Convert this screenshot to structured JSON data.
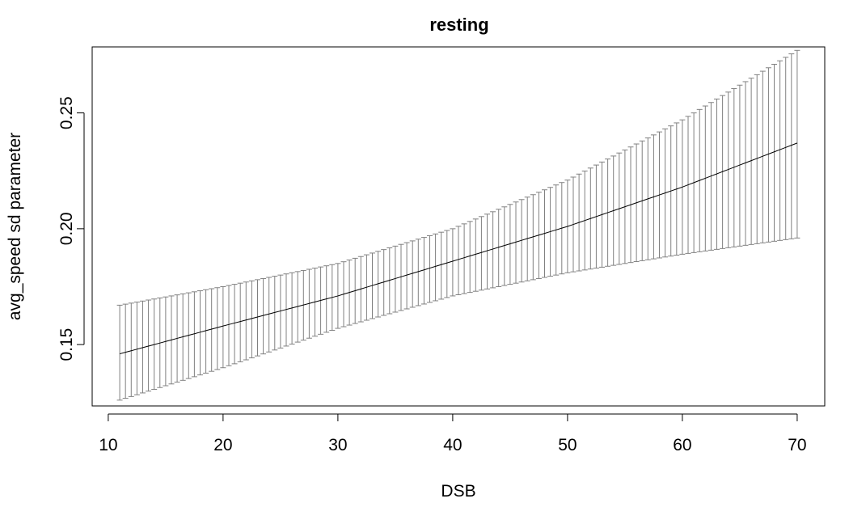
{
  "chart_data": {
    "type": "line",
    "title": "resting",
    "xlabel": "DSB",
    "ylabel": "avg_speed sd parameter",
    "xlim": [
      8.6,
      72.4
    ],
    "ylim": [
      0.1235,
      0.2785
    ],
    "xticks": [
      10,
      20,
      30,
      40,
      50,
      60,
      70
    ],
    "yticks": [
      0.15,
      0.2,
      0.25
    ],
    "ytick_labels": [
      "0.15",
      "0.20",
      "0.25"
    ],
    "grid": false,
    "legend": "none",
    "colors": {
      "line": "#000000",
      "error_bars": "#808080",
      "frame": "#000000"
    },
    "x_range": [
      11,
      70
    ],
    "fit_anchors": {
      "x": [
        11,
        20,
        30,
        40,
        50,
        60,
        70
      ],
      "y": [
        0.146,
        0.158,
        0.171,
        0.186,
        0.201,
        0.218,
        0.237
      ]
    },
    "lower_anchors": {
      "x": [
        11,
        20,
        30,
        40,
        50,
        60,
        70
      ],
      "y": [
        0.126,
        0.14,
        0.157,
        0.171,
        0.181,
        0.189,
        0.196
      ]
    },
    "upper_anchors": {
      "x": [
        11,
        20,
        30,
        40,
        50,
        60,
        70
      ],
      "y": [
        0.167,
        0.175,
        0.185,
        0.2,
        0.221,
        0.247,
        0.277
      ]
    }
  }
}
